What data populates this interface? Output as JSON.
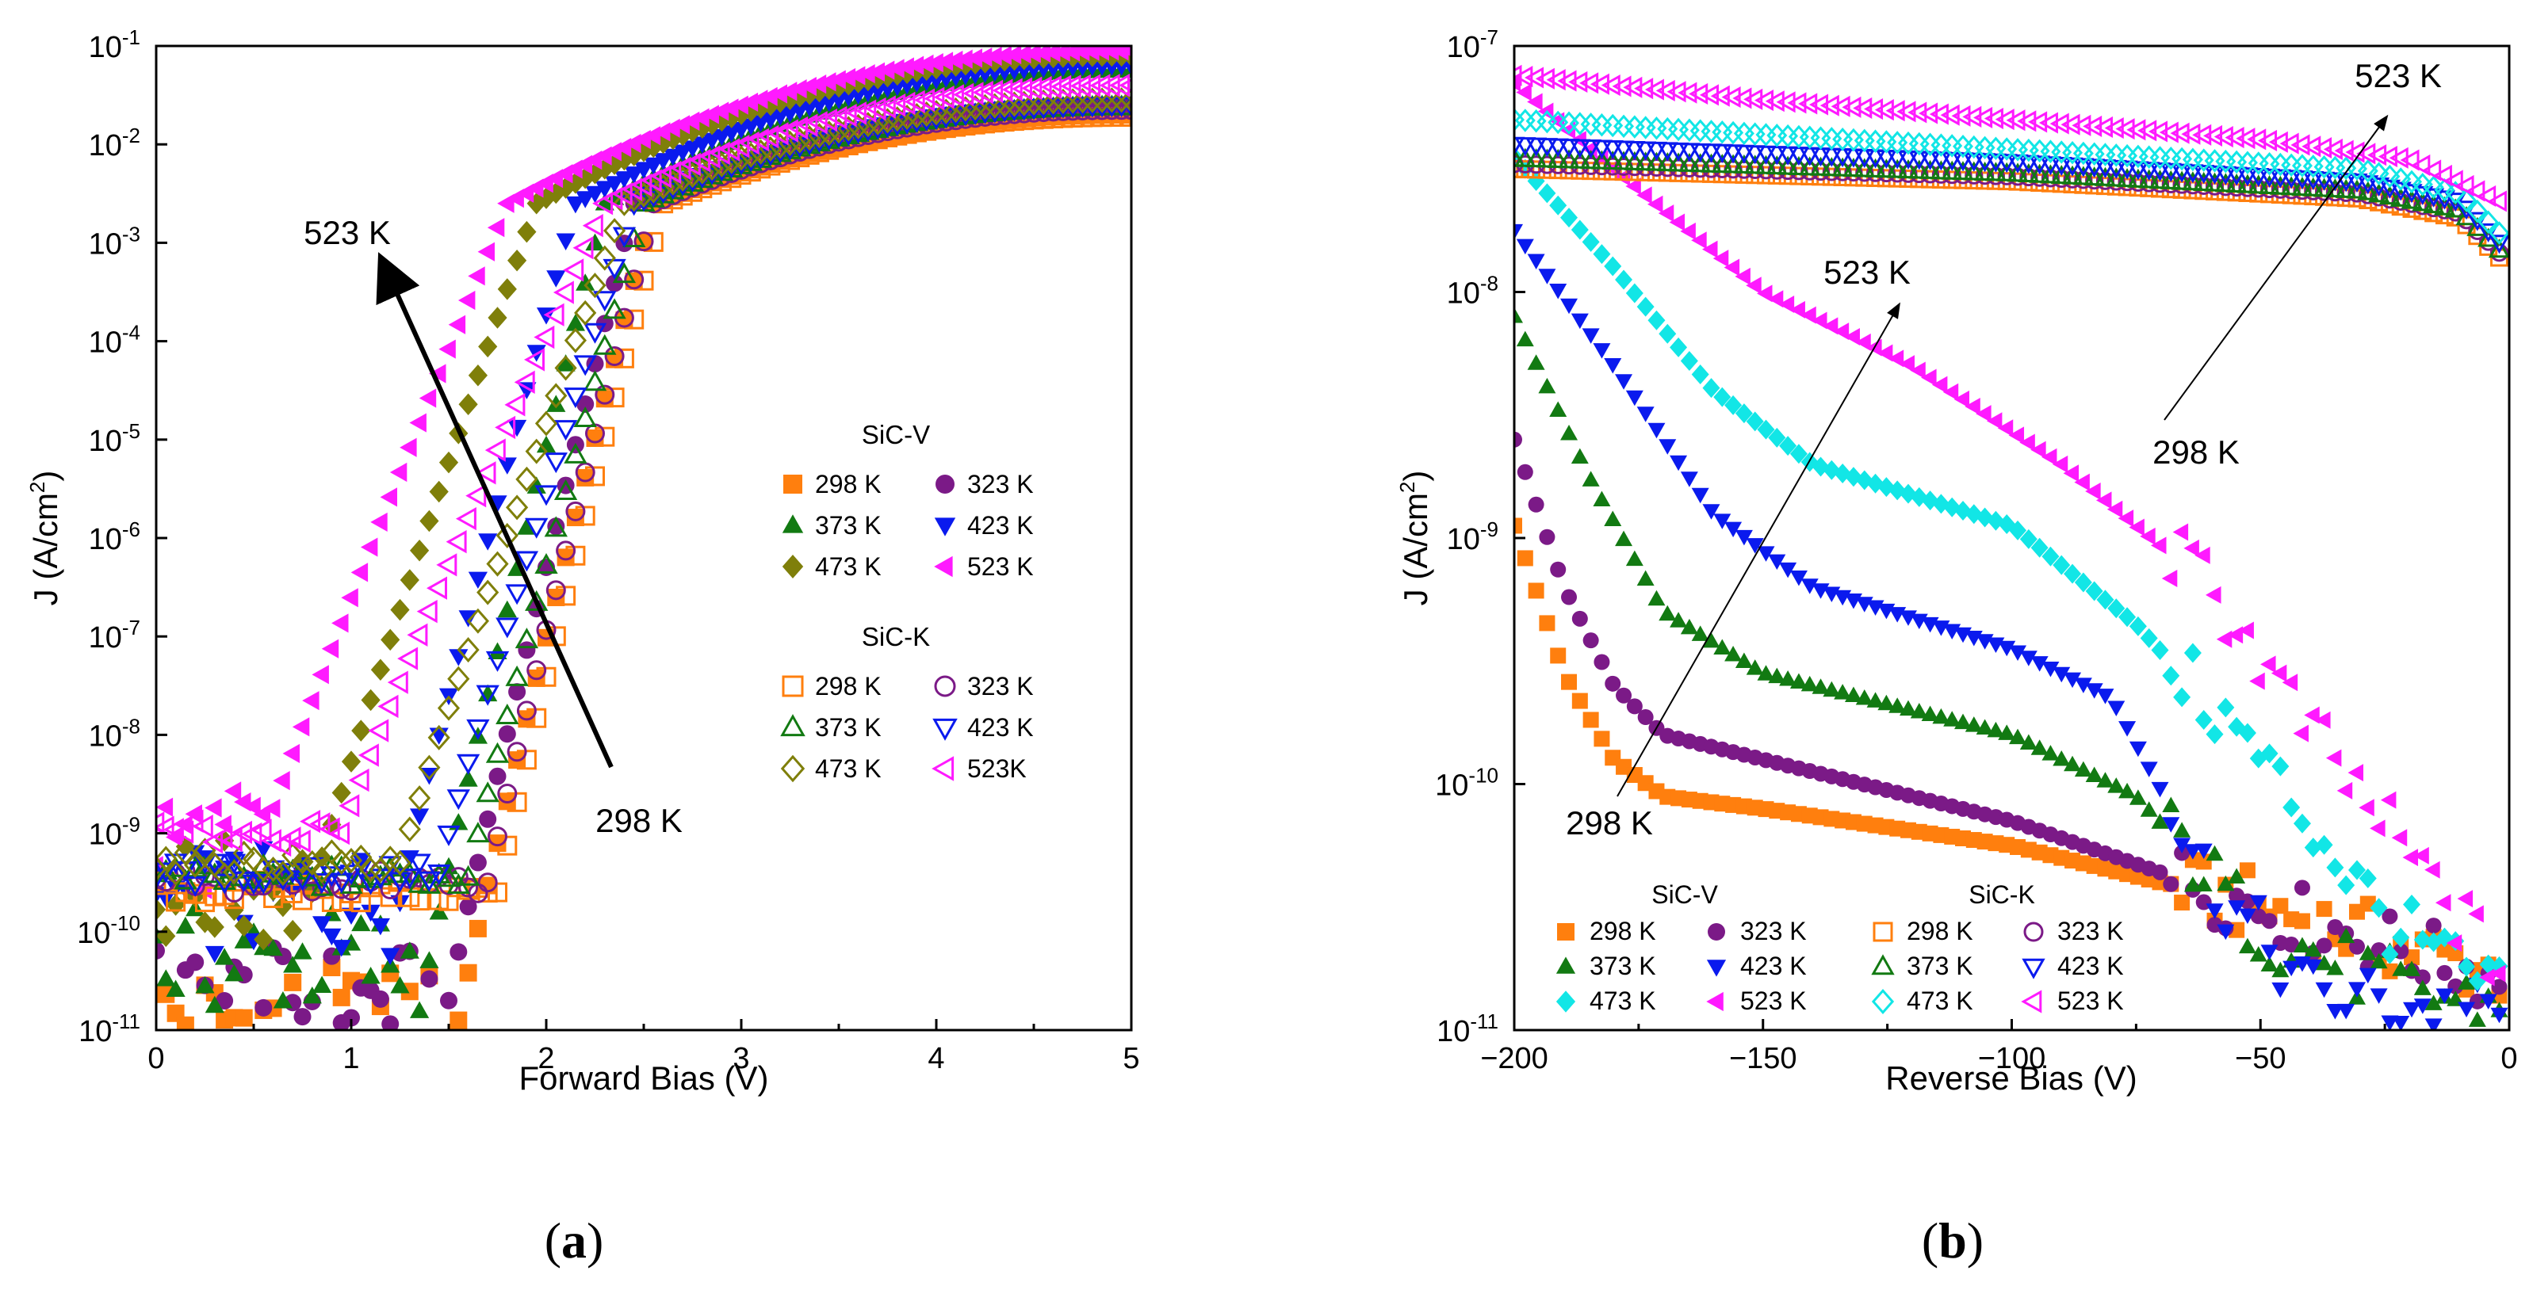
{
  "colors": {
    "298": "#ff7f0e",
    "323": "#7b1a87",
    "373": "#127a12",
    "423": "#0a1aee",
    "473": "#7f7f0a",
    "523": "#ff1aff",
    "473b": "#12e6e6"
  },
  "chart_data": [
    {
      "panel": "(a)",
      "type": "scatter",
      "xlabel": "Forward Bias (V)",
      "ylabel": "J (A/cm2)",
      "xlim": [
        0,
        5
      ],
      "ylim_log10": [
        -11,
        -1
      ],
      "yscale": "log",
      "x_ticks": [
        "0",
        "1",
        "2",
        "3",
        "4",
        "5"
      ],
      "y_ticks": [
        "-11",
        "-10",
        "-9",
        "-8",
        "-7",
        "-6",
        "-5",
        "-4",
        "-3",
        "-2",
        "-1"
      ],
      "legend_groups": [
        {
          "title": "SiC-V",
          "filled": true,
          "entries": [
            "298 K",
            "323 K",
            "373 K",
            "423 K",
            "473 K",
            "523 K"
          ]
        },
        {
          "title": "SiC-K",
          "filled": false,
          "entries": [
            "298 K",
            "323 K",
            "373 K",
            "423 K",
            "473 K",
            "523K"
          ]
        }
      ],
      "annotations": {
        "start": "298 K",
        "end": "523 K"
      },
      "series": [
        {
          "name": "SiC-V 298 K",
          "temp": 298,
          "filled": true,
          "marker": "square",
          "leak": -10.9,
          "onset": 1.55,
          "knee": 2.55,
          "sat": -1.7
        },
        {
          "name": "SiC-V 323 K",
          "temp": 323,
          "filled": true,
          "marker": "circle",
          "leak": -10.7,
          "onset": 1.5,
          "knee": 2.45,
          "sat": -1.6
        },
        {
          "name": "SiC-V 373 K",
          "temp": 373,
          "filled": true,
          "marker": "triangle-up",
          "leak": -10.3,
          "onset": 1.4,
          "knee": 2.3,
          "sat": -1.25
        },
        {
          "name": "SiC-V 423 K",
          "temp": 423,
          "filled": true,
          "marker": "triangle-down",
          "leak": -9.7,
          "onset": 1.25,
          "knee": 2.15,
          "sat": -1.2
        },
        {
          "name": "SiC-V 473 K",
          "temp": 473,
          "filled": true,
          "marker": "diamond",
          "leak": -9.6,
          "onset": 0.8,
          "knee": 1.95,
          "sat": -1.1
        },
        {
          "name": "SiC-V 523 K",
          "temp": 523,
          "filled": true,
          "marker": "triangle-left",
          "leak": -9.05,
          "onset": 0.55,
          "knee": 1.8,
          "sat": -1.05
        },
        {
          "name": "SiC-K 298 K",
          "temp": 298,
          "filled": false,
          "marker": "square",
          "leak": -9.6,
          "onset": 1.75,
          "knee": 2.6,
          "sat": -1.72
        },
        {
          "name": "SiC-K 323 K",
          "temp": 323,
          "filled": false,
          "marker": "circle",
          "leak": -9.5,
          "onset": 1.7,
          "knee": 2.55,
          "sat": -1.65
        },
        {
          "name": "SiC-K 373 K",
          "temp": 373,
          "filled": false,
          "marker": "triangle-up",
          "leak": -9.45,
          "onset": 1.6,
          "knee": 2.5,
          "sat": -1.62
        },
        {
          "name": "SiC-K 423 K",
          "temp": 423,
          "filled": false,
          "marker": "triangle-down",
          "leak": -9.4,
          "onset": 1.45,
          "knee": 2.45,
          "sat": -1.6
        },
        {
          "name": "SiC-K 473 K",
          "temp": 473,
          "filled": false,
          "marker": "diamond",
          "leak": -9.3,
          "onset": 1.25,
          "knee": 2.4,
          "sat": -1.55
        },
        {
          "name": "SiC-K 523K",
          "temp": 523,
          "filled": false,
          "marker": "triangle-left",
          "leak": -9.0,
          "onset": 0.95,
          "knee": 2.3,
          "sat": -1.4
        }
      ]
    },
    {
      "panel": "(b)",
      "type": "scatter",
      "xlabel": "Reverse Bias (V)",
      "ylabel": "J (A/cm2)",
      "xlim": [
        -200,
        0
      ],
      "ylim_log10": [
        -11,
        -7
      ],
      "yscale": "log",
      "x_ticks": [
        "−200",
        "−150",
        "−100",
        "−50",
        "0"
      ],
      "y_ticks": [
        "-11",
        "-10",
        "-9",
        "-8",
        "-7"
      ],
      "legend_groups": [
        {
          "title": "SiC-V",
          "filled": true,
          "entries": [
            "298 K",
            "323 K",
            "373 K",
            "423 K",
            "473 K",
            "523 K"
          ]
        },
        {
          "title": "SiC-K",
          "filled": false,
          "entries": [
            "298 K",
            "323 K",
            "373 K",
            "423 K",
            "473 K",
            "523 K"
          ]
        }
      ],
      "annotations": [
        {
          "start": "298 K",
          "end": "523 K"
        },
        {
          "start": "298 K",
          "end": "523 K"
        }
      ],
      "series": [
        {
          "name": "SiC-V 298 K",
          "temp": 298,
          "filled": true,
          "marker": "square",
          "points": [
            [
              -200,
              -8.95
            ],
            [
              -190,
              -9.55
            ],
            [
              -180,
              -9.9
            ],
            [
              -170,
              -10.05
            ],
            [
              -150,
              -10.1
            ],
            [
              -100,
              -10.25
            ],
            [
              -50,
              -10.5
            ],
            [
              0,
              -10.78
            ]
          ]
        },
        {
          "name": "SiC-V 323 K",
          "temp": 323,
          "filled": true,
          "marker": "circle",
          "points": [
            [
              -200,
              -8.6
            ],
            [
              -190,
              -9.2
            ],
            [
              -180,
              -9.6
            ],
            [
              -170,
              -9.8
            ],
            [
              -150,
              -9.9
            ],
            [
              -100,
              -10.15
            ],
            [
              -50,
              -10.5
            ],
            [
              0,
              -10.8
            ]
          ]
        },
        {
          "name": "SiC-V 373 K",
          "temp": 373,
          "filled": true,
          "marker": "triangle-up",
          "points": [
            [
              -200,
              -8.1
            ],
            [
              -185,
              -8.75
            ],
            [
              -170,
              -9.3
            ],
            [
              -150,
              -9.55
            ],
            [
              -100,
              -9.8
            ],
            [
              -75,
              -10.05
            ],
            [
              -50,
              -10.6
            ],
            [
              -20,
              -10.85
            ],
            [
              0,
              -10.9
            ]
          ]
        },
        {
          "name": "SiC-V 423 K",
          "temp": 423,
          "filled": true,
          "marker": "triangle-down",
          "points": [
            [
              -200,
              -7.75
            ],
            [
              -180,
              -8.3
            ],
            [
              -160,
              -8.9
            ],
            [
              -140,
              -9.2
            ],
            [
              -100,
              -9.45
            ],
            [
              -80,
              -9.65
            ],
            [
              -60,
              -10.4
            ],
            [
              -40,
              -10.85
            ],
            [
              0,
              -10.95
            ]
          ]
        },
        {
          "name": "SiC-V 473 K",
          "temp": 473,
          "filled": true,
          "marker": "diamond",
          "points": [
            [
              -200,
              -7.45
            ],
            [
              -180,
              -7.9
            ],
            [
              -160,
              -8.4
            ],
            [
              -140,
              -8.7
            ],
            [
              -100,
              -8.95
            ],
            [
              -75,
              -9.35
            ],
            [
              -50,
              -9.9
            ],
            [
              -25,
              -10.55
            ],
            [
              0,
              -10.9
            ]
          ]
        },
        {
          "name": "SiC-V 523 K",
          "temp": 523,
          "filled": true,
          "marker": "triangle-left",
          "points": [
            [
              -200,
              -7.15
            ],
            [
              -180,
              -7.5
            ],
            [
              -150,
              -8.0
            ],
            [
              -120,
              -8.3
            ],
            [
              -90,
              -8.7
            ],
            [
              -60,
              -9.2
            ],
            [
              -40,
              -9.8
            ],
            [
              -20,
              -10.3
            ],
            [
              0,
              -10.8
            ]
          ]
        },
        {
          "name": "SiC-K 298 K",
          "temp": 298,
          "filled": false,
          "marker": "square",
          "points": [
            [
              -200,
              -7.5
            ],
            [
              -100,
              -7.55
            ],
            [
              -30,
              -7.62
            ],
            [
              -10,
              -7.7
            ],
            [
              0,
              -7.9
            ]
          ]
        },
        {
          "name": "SiC-K 323 K",
          "temp": 323,
          "filled": false,
          "marker": "circle",
          "points": [
            [
              -200,
              -7.48
            ],
            [
              -100,
              -7.53
            ],
            [
              -30,
              -7.6
            ],
            [
              -10,
              -7.68
            ],
            [
              0,
              -7.88
            ]
          ]
        },
        {
          "name": "SiC-K 373 K",
          "temp": 373,
          "filled": false,
          "marker": "triangle-up",
          "points": [
            [
              -200,
              -7.46
            ],
            [
              -100,
              -7.52
            ],
            [
              -30,
              -7.59
            ],
            [
              -10,
              -7.67
            ],
            [
              0,
              -7.87
            ]
          ]
        },
        {
          "name": "SiC-K 423 K",
          "temp": 423,
          "filled": false,
          "marker": "triangle-down",
          "points": [
            [
              -200,
              -7.4
            ],
            [
              -100,
              -7.47
            ],
            [
              -30,
              -7.55
            ],
            [
              -10,
              -7.63
            ],
            [
              0,
              -7.84
            ]
          ]
        },
        {
          "name": "SiC-K 473 K",
          "temp": 473,
          "filled": false,
          "marker": "diamond",
          "points": [
            [
              -200,
              -7.3
            ],
            [
              -100,
              -7.42
            ],
            [
              -30,
              -7.5
            ],
            [
              -10,
              -7.6
            ],
            [
              0,
              -7.8
            ]
          ]
        },
        {
          "name": "SiC-K 523 K",
          "temp": 523,
          "filled": false,
          "marker": "triangle-left",
          "points": [
            [
              -200,
              -7.12
            ],
            [
              -150,
              -7.22
            ],
            [
              -100,
              -7.3
            ],
            [
              -50,
              -7.38
            ],
            [
              -20,
              -7.46
            ],
            [
              0,
              -7.65
            ]
          ]
        }
      ]
    }
  ],
  "captions": {
    "a": "a",
    "b": "b"
  },
  "tick_base": "10",
  "ylabel_main": "J (A/cm",
  "ylabel_sup": "2",
  "ylabel_close": ")"
}
